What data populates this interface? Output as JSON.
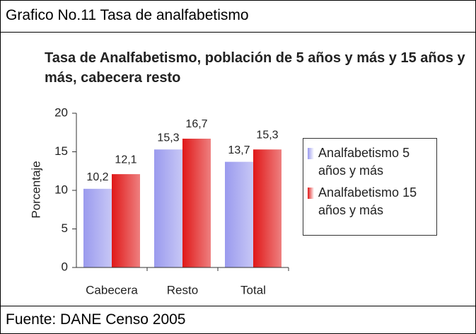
{
  "header": {
    "title": "Grafico No.11 Tasa de analfabetismo"
  },
  "chart_data": {
    "type": "bar",
    "title": "Tasa de Analfabetismo, población de 5 años y más y 15 años y más, cabecera resto",
    "ylabel": "Porcentaje",
    "categories": [
      "Cabecera",
      "Resto",
      "Total"
    ],
    "series": [
      {
        "name": "Analfabetismo 5 años y más",
        "color": "#9a9aee",
        "values": [
          10.2,
          15.3,
          13.7
        ],
        "value_labels": [
          "10,2",
          "15,3",
          "13,7"
        ]
      },
      {
        "name": "Analfabetismo 15 años y más",
        "color": "#e01818",
        "values": [
          12.1,
          16.7,
          15.3
        ],
        "value_labels": [
          "12,1",
          "16,7",
          "15,3"
        ]
      }
    ],
    "ylim": [
      0,
      20
    ],
    "yticks": [
      0,
      5,
      10,
      15,
      20
    ],
    "legend": "right"
  },
  "footer": {
    "source": "Fuente: DANE Censo 2005"
  }
}
